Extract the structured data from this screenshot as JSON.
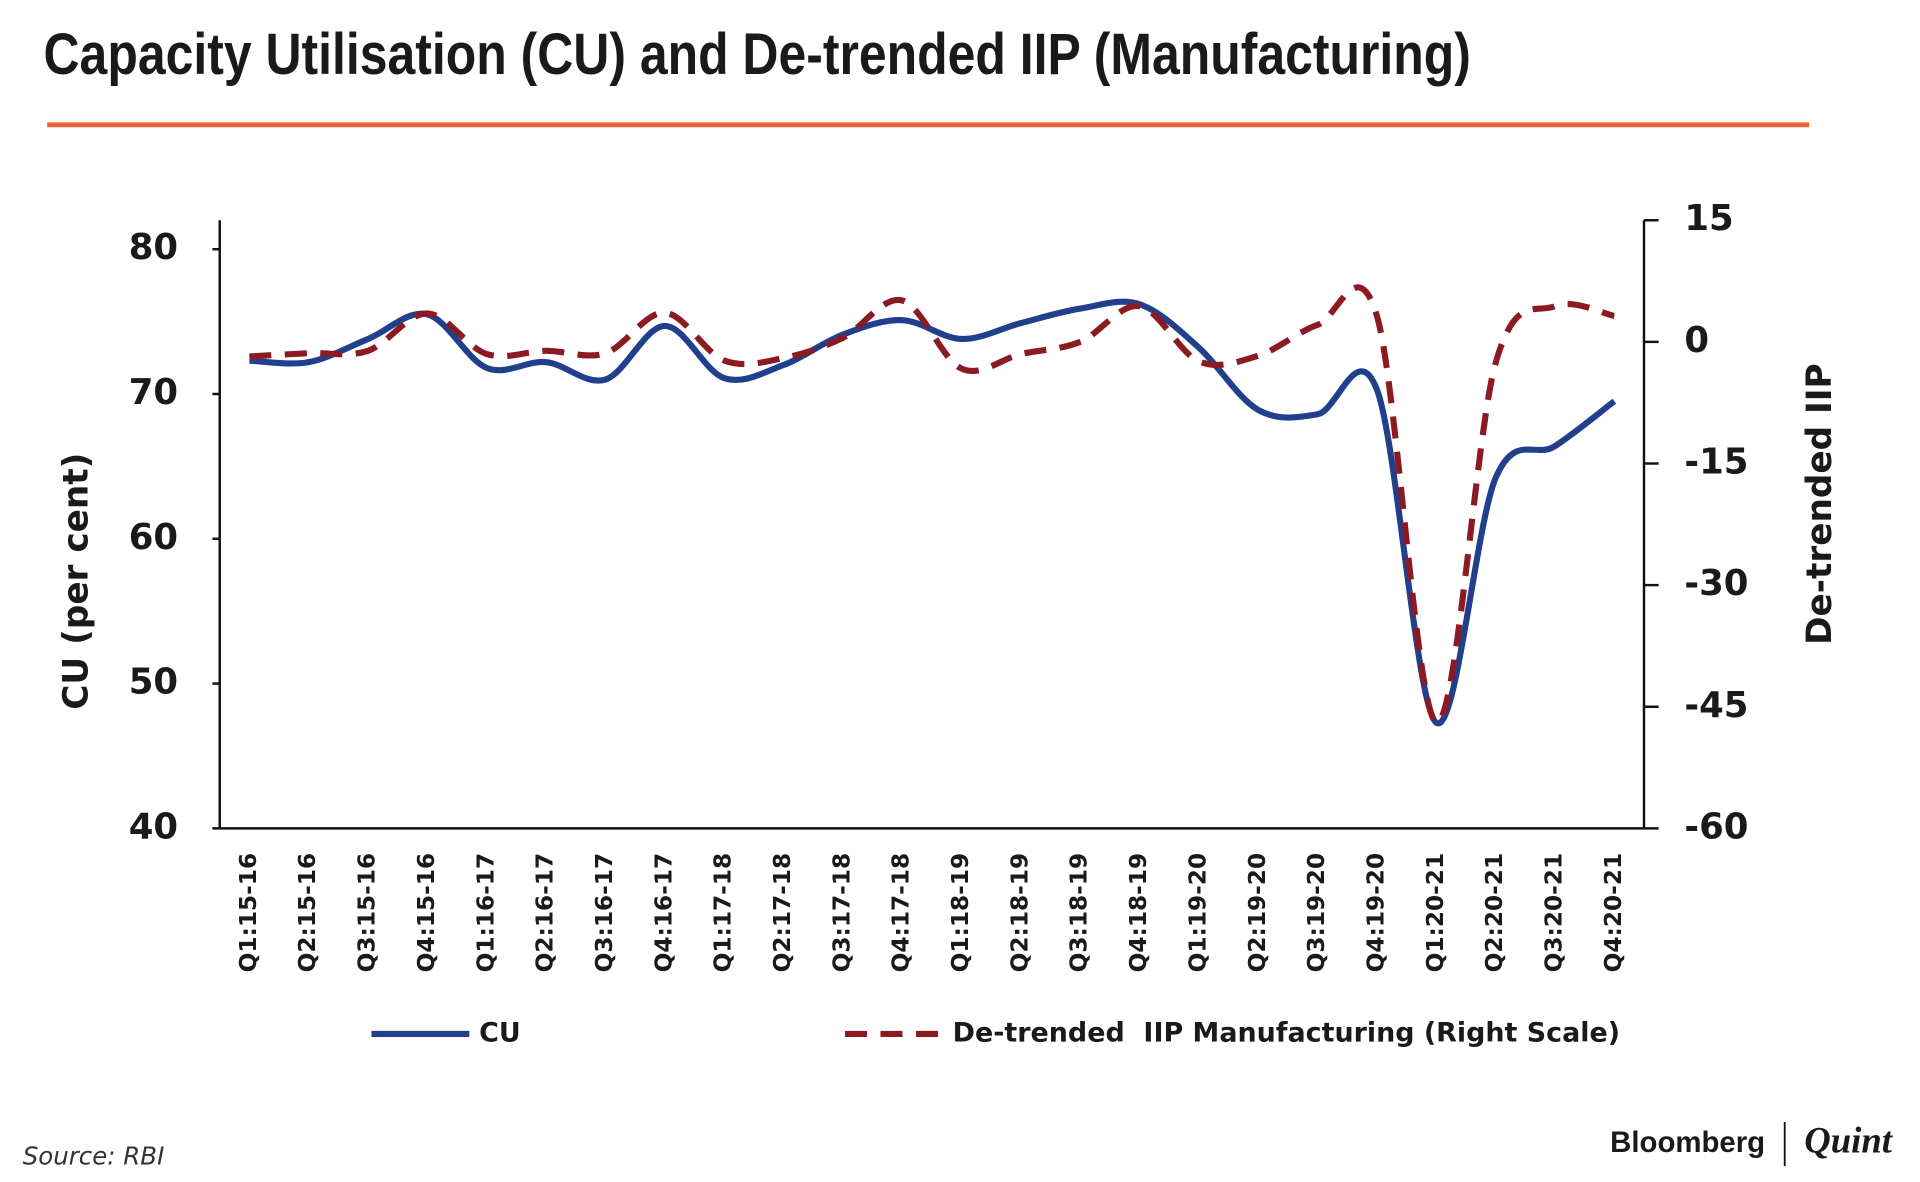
{
  "chart_data": {
    "type": "line",
    "title": "Capacity Utilisation (CU) and De-trended IIP (Manufacturing)",
    "y_label": "CU (per cent)",
    "y2_label": "De-trended IIP",
    "categories": [
      "Q1:15-16",
      "Q2:15-16",
      "Q3:15-16",
      "Q4:15-16",
      "Q1:16-17",
      "Q2:16-17",
      "Q3:16-17",
      "Q4:16-17",
      "Q1:17-18",
      "Q2:17-18",
      "Q3:17-18",
      "Q4:17-18",
      "Q1:18-19",
      "Q2:18-19",
      "Q3:18-19",
      "Q4:18-19",
      "Q1:19-20",
      "Q2:19-20",
      "Q3:19-20",
      "Q4:19-20",
      "Q1:20-21",
      "Q2:20-21",
      "Q3:20-21",
      "Q4:20-21"
    ],
    "series": [
      {
        "name": "CU",
        "color": "#203f8c",
        "dashed": false,
        "values": [
          72.3,
          72.2,
          73.8,
          75.5,
          71.8,
          72.2,
          71.0,
          74.7,
          71.1,
          72.0,
          74.1,
          75.1,
          73.8,
          74.9,
          75.9,
          76.2,
          73.2,
          68.9,
          68.6,
          70.3,
          47.3,
          64.2,
          66.4,
          69.5
        ]
      },
      {
        "name": "De-trended  IIP Manufacturing (Right Scale)",
        "color": "#8b1a22",
        "dashed": true,
        "axis": "y2",
        "values": [
          -1.8,
          -1.4,
          -1.1,
          3.5,
          -1.5,
          -1.1,
          -1.4,
          3.6,
          -2.3,
          -2.0,
          0.5,
          5.1,
          -3.3,
          -1.5,
          0,
          4.4,
          -2.4,
          -1.7,
          2.1,
          3.2,
          -46.9,
          -2.6,
          4.4,
          3.2
        ]
      }
    ],
    "ylim": [
      40,
      82
    ],
    "yticks": [
      40,
      50,
      60,
      70,
      80
    ],
    "y2lim": [
      -60,
      15
    ],
    "y2ticks": [
      -60,
      -45,
      -30,
      -15,
      0,
      15
    ],
    "title_rule_color": "#e8643a",
    "source": "Source: RBI"
  },
  "branding": {
    "left": "Bloomberg",
    "right": "Quint"
  }
}
